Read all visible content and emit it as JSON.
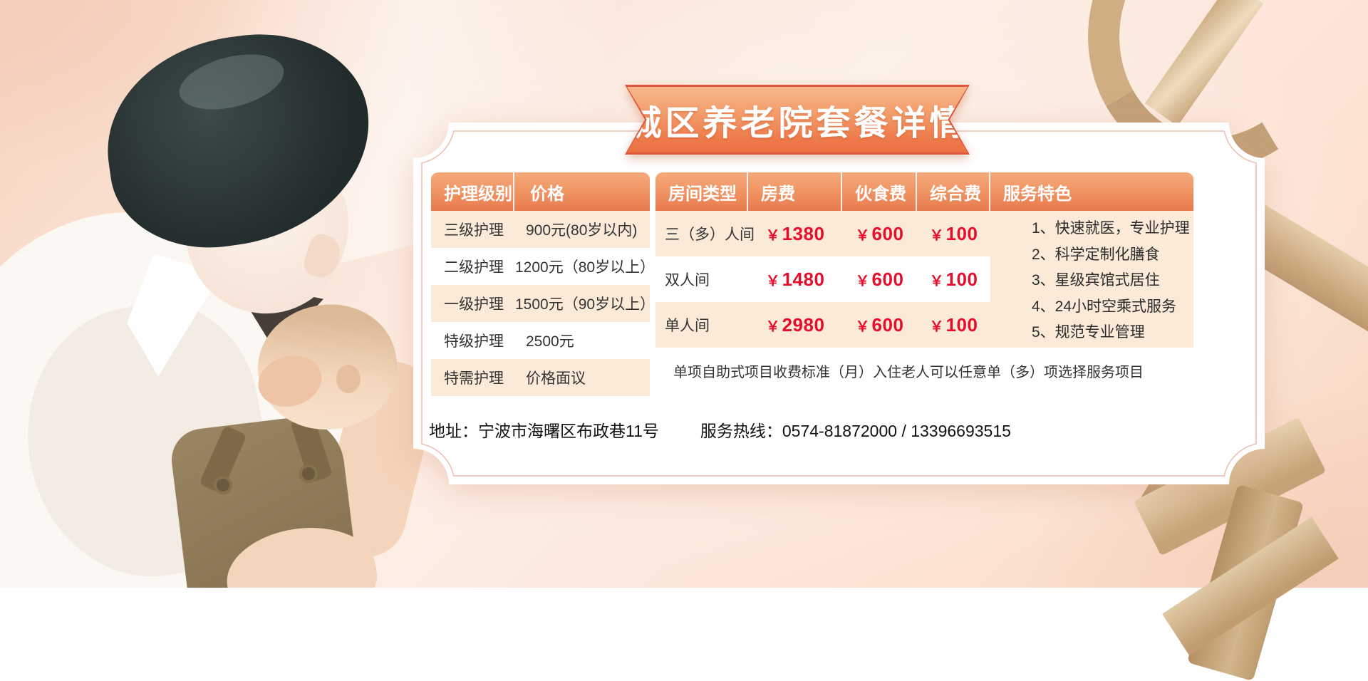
{
  "banner": {
    "title": "城区养老院套餐详情"
  },
  "care_table": {
    "headers": [
      "护理级别",
      "价格"
    ],
    "rows": [
      {
        "level": "三级护理",
        "price": "900元(80岁以内)"
      },
      {
        "level": "二级护理",
        "price": "1200元（80岁以上）"
      },
      {
        "level": "一级护理",
        "price": "1500元（90岁以上）"
      },
      {
        "level": "特级护理",
        "price": "2500元"
      },
      {
        "level": "特需护理",
        "price": "价格面议"
      }
    ]
  },
  "room_table": {
    "headers": [
      "房间类型",
      "房费",
      "伙食费",
      "综合费",
      "服务特色"
    ],
    "currency": "￥",
    "rows": [
      {
        "type": "三（多）人间",
        "room_fee": "1380",
        "meal_fee": "600",
        "misc_fee": "100"
      },
      {
        "type": "双人间",
        "room_fee": "1480",
        "meal_fee": "600",
        "misc_fee": "100"
      },
      {
        "type": "单人间",
        "room_fee": "2980",
        "meal_fee": "600",
        "misc_fee": "100"
      }
    ],
    "services": [
      "1、快速就医，专业护理",
      "2、科学定制化膳食",
      "3、星级宾馆式居住",
      "4、24小时空乘式服务",
      "5、规范专业管理"
    ],
    "note": "单项自助式项目收费标准（月）入住老人可以任意单（多）项选择服务项目"
  },
  "footer": {
    "address": "地址：宁波市海曙区布政巷11号",
    "hotline": "服务热线：0574-81872000  /  13396693515"
  },
  "colors": {
    "accent_orange": "#ee7c4c",
    "banner_edge": "#e0573f",
    "row_peach": "#fcead9",
    "price_red": "#e60e2a",
    "gold_ribbon": "#cfae83",
    "panel_line_pink": "#ecbcae",
    "background_peach": "#fae1d1"
  }
}
